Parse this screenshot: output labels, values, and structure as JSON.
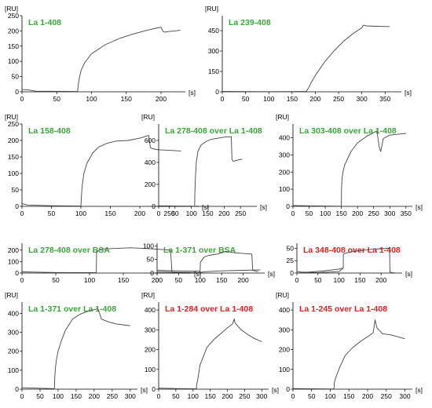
{
  "colors": {
    "green": "#3aa63a",
    "red": "#e02020",
    "trace": "#444444"
  },
  "chart_data": [
    {
      "type": "line",
      "title": "La 1-408",
      "title_color": "green",
      "ylabel": "[RU]",
      "xlabel": "[s]",
      "ylim": [
        0,
        250
      ],
      "yticks": [
        0,
        50,
        100,
        150,
        200,
        250
      ],
      "xlim": [
        0,
        235
      ],
      "xticks": [
        0,
        50,
        100,
        150,
        200
      ],
      "series": [
        {
          "x": [
            0,
            10,
            20,
            80,
            80.5,
            82,
            85,
            90,
            100,
            120,
            140,
            160,
            180,
            195,
            200,
            203,
            206,
            210,
            220,
            228
          ],
          "values": [
            8,
            6,
            2,
            1,
            15,
            40,
            70,
            95,
            125,
            155,
            175,
            190,
            202,
            210,
            212,
            198,
            196,
            198,
            200,
            202
          ]
        }
      ]
    },
    {
      "type": "line",
      "title": "La 239-408",
      "title_color": "green",
      "ylabel": "[RU]",
      "xlabel": "[s]",
      "ylim": [
        0,
        560
      ],
      "yticks": [
        0,
        150,
        300,
        450
      ],
      "xlim": [
        0,
        385
      ],
      "xticks": [
        0,
        50,
        100,
        150,
        200,
        250,
        300,
        350
      ],
      "series": [
        {
          "x": [
            0,
            50,
            100,
            150,
            180,
            185,
            190,
            200,
            220,
            240,
            260,
            280,
            295,
            300,
            303,
            310,
            330,
            360
          ],
          "values": [
            3,
            2,
            1,
            2,
            3,
            25,
            60,
            120,
            220,
            300,
            370,
            425,
            460,
            470,
            490,
            485,
            482,
            480
          ]
        }
      ]
    },
    {
      "type": "line",
      "title": "La 158-408",
      "title_color": "green",
      "ylabel": "[RU]",
      "xlabel": "[s]",
      "ylim": [
        0,
        250
      ],
      "yticks": [
        0,
        50,
        100,
        150,
        200,
        250
      ],
      "xlim": [
        0,
        300
      ],
      "xticks": [
        0,
        50,
        100,
        150,
        200,
        250
      ],
      "series": [
        {
          "x": [
            0,
            10,
            50,
            100,
            100.5,
            102,
            105,
            110,
            120,
            130,
            145,
            160,
            180,
            200,
            215,
            218,
            222,
            230,
            250,
            270
          ],
          "values": [
            8,
            4,
            2,
            1,
            20,
            60,
            100,
            130,
            162,
            180,
            192,
            198,
            200,
            207,
            215,
            178,
            175,
            172,
            170,
            168
          ]
        }
      ]
    },
    {
      "type": "line",
      "title": "La 278-408 over La 1-408",
      "title_color": "green",
      "ylabel": "[RU]",
      "xlabel": "[s]",
      "ylim": [
        0,
        750
      ],
      "yticks": [
        0,
        200,
        400,
        600
      ],
      "xlim": [
        0,
        300
      ],
      "xticks": [
        0,
        50,
        100,
        150,
        200,
        250
      ],
      "series": [
        {
          "x": [
            0,
            50,
            100,
            110,
            110.5,
            112,
            115,
            120,
            130,
            145,
            160,
            180,
            200,
            222,
            224,
            228,
            240,
            255
          ],
          "values": [
            5,
            3,
            2,
            1,
            100,
            250,
            400,
            500,
            560,
            590,
            610,
            620,
            630,
            635,
            430,
            410,
            420,
            430
          ]
        }
      ]
    },
    {
      "type": "line",
      "title": "La 303-408 over La 1-408",
      "title_color": "green",
      "ylabel": "[RU]",
      "xlabel": "[s]",
      "ylim": [
        0,
        480
      ],
      "yticks": [
        0,
        100,
        200,
        300,
        400
      ],
      "xlim": [
        0,
        370
      ],
      "xticks": [
        0,
        50,
        100,
        150,
        200,
        250,
        300,
        350
      ],
      "series": [
        {
          "x": [
            0,
            50,
            100,
            150,
            150.5,
            152,
            155,
            160,
            180,
            200,
            230,
            260,
            268,
            272,
            280,
            300,
            350
          ],
          "values": [
            5,
            3,
            2,
            1,
            100,
            160,
            200,
            240,
            320,
            370,
            410,
            440,
            340,
            320,
            395,
            415,
            425
          ]
        }
      ]
    },
    {
      "type": "line",
      "title": "La 278-408 over BSA",
      "title_color": "green",
      "ylabel": "",
      "xlabel": "[s]",
      "ylim": [
        0,
        260
      ],
      "yticks": [
        0,
        100,
        200
      ],
      "xlim": [
        0,
        250
      ],
      "xticks": [
        0,
        50,
        100,
        150,
        200
      ],
      "series": [
        {
          "x": [
            0,
            20,
            50,
            110,
            110.5,
            115,
            120,
            140,
            160,
            180,
            200,
            220,
            222,
            225,
            235
          ],
          "values": [
            10,
            8,
            5,
            4,
            190,
            200,
            210,
            215,
            220,
            215,
            208,
            200,
            10,
            5,
            3
          ]
        }
      ]
    },
    {
      "type": "line",
      "title": "La 1-371 over BSA",
      "title_color": "green",
      "ylabel": "",
      "xlabel": "[s]",
      "ylim": [
        0,
        110
      ],
      "yticks": [
        0,
        50,
        100
      ],
      "xlim": [
        0,
        250
      ],
      "xticks": [
        0,
        50,
        100,
        150,
        200
      ],
      "series": [
        {
          "x": [
            0,
            50,
            100,
            100.5,
            110,
            120,
            140,
            160,
            180,
            200,
            220,
            222,
            235
          ],
          "values": [
            10,
            8,
            7,
            40,
            60,
            65,
            70,
            80,
            75,
            72,
            70,
            10,
            5
          ]
        },
        {
          "x": [
            0,
            50,
            100,
            110,
            150,
            200,
            240
          ],
          "values": [
            5,
            3,
            2,
            5,
            8,
            10,
            12
          ]
        }
      ]
    },
    {
      "type": "line",
      "title": "La 348-408 over La 1-408",
      "title_color": "red",
      "ylabel": "",
      "xlabel": "[s]",
      "ylim": [
        0,
        60
      ],
      "yticks": [
        0,
        25,
        50
      ],
      "xlim": [
        0,
        250
      ],
      "xticks": [
        0,
        50,
        100,
        150,
        200
      ],
      "series": [
        {
          "x": [
            0,
            10,
            50,
            100,
            110,
            110.5,
            115,
            140,
            160,
            180,
            200,
            220,
            221,
            225,
            235
          ],
          "values": [
            3,
            2,
            1,
            3,
            10,
            38,
            40,
            44,
            46,
            48,
            49,
            50,
            2,
            1,
            0
          ]
        },
        {
          "x": [
            0,
            30,
            60,
            100,
            110
          ],
          "values": [
            0,
            2,
            4,
            8,
            10
          ]
        }
      ]
    },
    {
      "type": "line",
      "title": "La 1-371 over La 1-408",
      "title_color": "green",
      "ylabel": "[RU]",
      "xlabel": "[s]",
      "ylim": [
        0,
        460
      ],
      "yticks": [
        0,
        100,
        200,
        300,
        400
      ],
      "xlim": [
        0,
        320
      ],
      "xticks": [
        0,
        50,
        100,
        150,
        200,
        250,
        300
      ],
      "series": [
        {
          "x": [
            0,
            50,
            90,
            90.5,
            92,
            95,
            100,
            110,
            120,
            140,
            160,
            180,
            200,
            210,
            215,
            220,
            240,
            260,
            280,
            300
          ],
          "values": [
            8,
            5,
            3,
            50,
            100,
            150,
            200,
            260,
            310,
            370,
            395,
            410,
            420,
            425,
            400,
            370,
            355,
            345,
            340,
            335
          ]
        }
      ]
    },
    {
      "type": "line",
      "title": "La 1-284 over La 1-408",
      "title_color": "red",
      "ylabel": "[RU]",
      "xlabel": "[s]",
      "ylim": [
        0,
        440
      ],
      "yticks": [
        0,
        100,
        200,
        300,
        400
      ],
      "xlim": [
        0,
        320
      ],
      "xticks": [
        0,
        50,
        100,
        150,
        200,
        250,
        300
      ],
      "series": [
        {
          "x": [
            0,
            50,
            100,
            110,
            110.5,
            115,
            120,
            140,
            160,
            180,
            200,
            215,
            220,
            222,
            240,
            260,
            280,
            300
          ],
          "values": [
            5,
            3,
            2,
            2,
            20,
            60,
            120,
            210,
            250,
            280,
            310,
            330,
            355,
            335,
            300,
            275,
            255,
            240
          ]
        }
      ]
    },
    {
      "type": "line",
      "title": "La 1-245 over La 1-408",
      "title_color": "red",
      "ylabel": "[RU]",
      "xlabel": "[s]",
      "ylim": [
        0,
        440
      ],
      "yticks": [
        0,
        100,
        200,
        300,
        400
      ],
      "xlim": [
        0,
        320
      ],
      "xticks": [
        0,
        50,
        100,
        150,
        200,
        250,
        300
      ],
      "series": [
        {
          "x": [
            0,
            50,
            100,
            110,
            110.5,
            115,
            125,
            140,
            160,
            180,
            200,
            215,
            220,
            225,
            240,
            260,
            280,
            300
          ],
          "values": [
            3,
            2,
            1,
            1,
            30,
            60,
            110,
            170,
            210,
            240,
            265,
            285,
            350,
            310,
            280,
            275,
            265,
            255
          ]
        }
      ]
    }
  ]
}
